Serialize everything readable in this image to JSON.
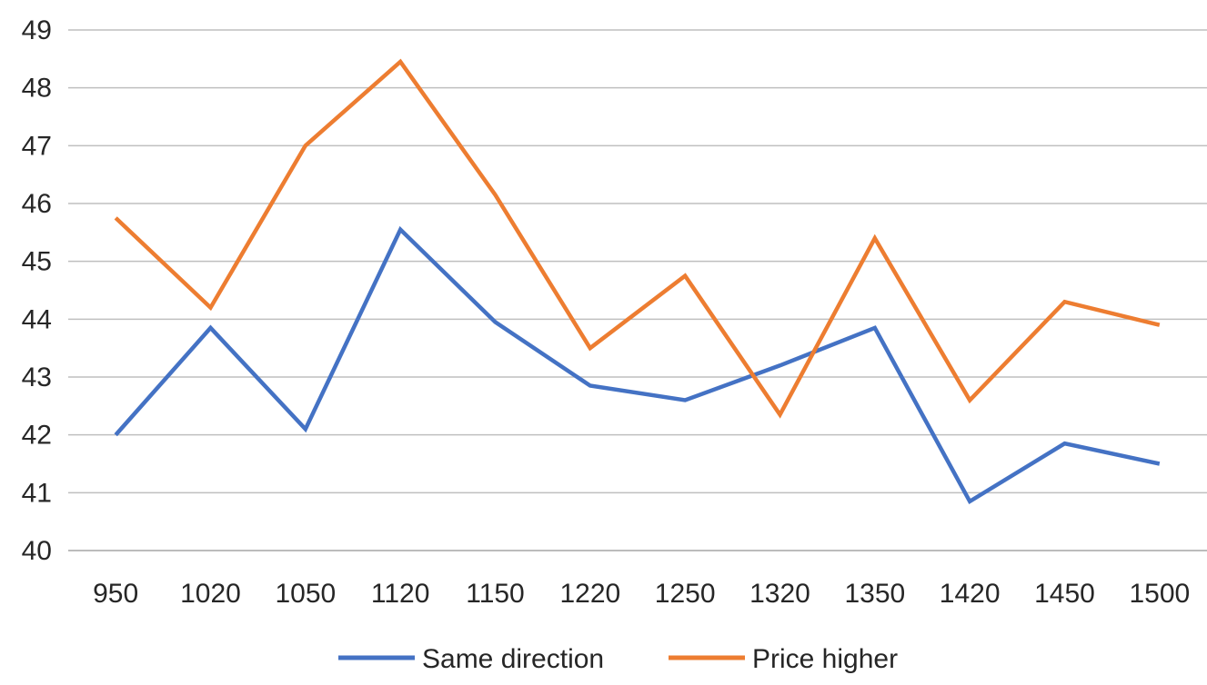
{
  "chart_data": {
    "type": "line",
    "title": "",
    "xlabel": "",
    "ylabel": "",
    "ylim": [
      40,
      49
    ],
    "yticks": [
      "40",
      "41",
      "42",
      "43",
      "44",
      "45",
      "46",
      "47",
      "48",
      "49"
    ],
    "categories": [
      "950",
      "1020",
      "1050",
      "1120",
      "1150",
      "1220",
      "1250",
      "1320",
      "1350",
      "1420",
      "1450",
      "1500"
    ],
    "grid": true,
    "legend_position": "bottom",
    "series": [
      {
        "name": "Same direction",
        "color": "#4472C4",
        "values": [
          42.0,
          43.85,
          42.1,
          45.55,
          43.95,
          42.85,
          42.6,
          43.2,
          43.85,
          40.85,
          41.85,
          41.5
        ]
      },
      {
        "name": "Price higher",
        "color": "#ED7D31",
        "values": [
          45.75,
          44.2,
          47.0,
          48.45,
          46.15,
          43.5,
          44.75,
          42.35,
          45.4,
          42.6,
          44.3,
          43.9
        ]
      }
    ]
  }
}
